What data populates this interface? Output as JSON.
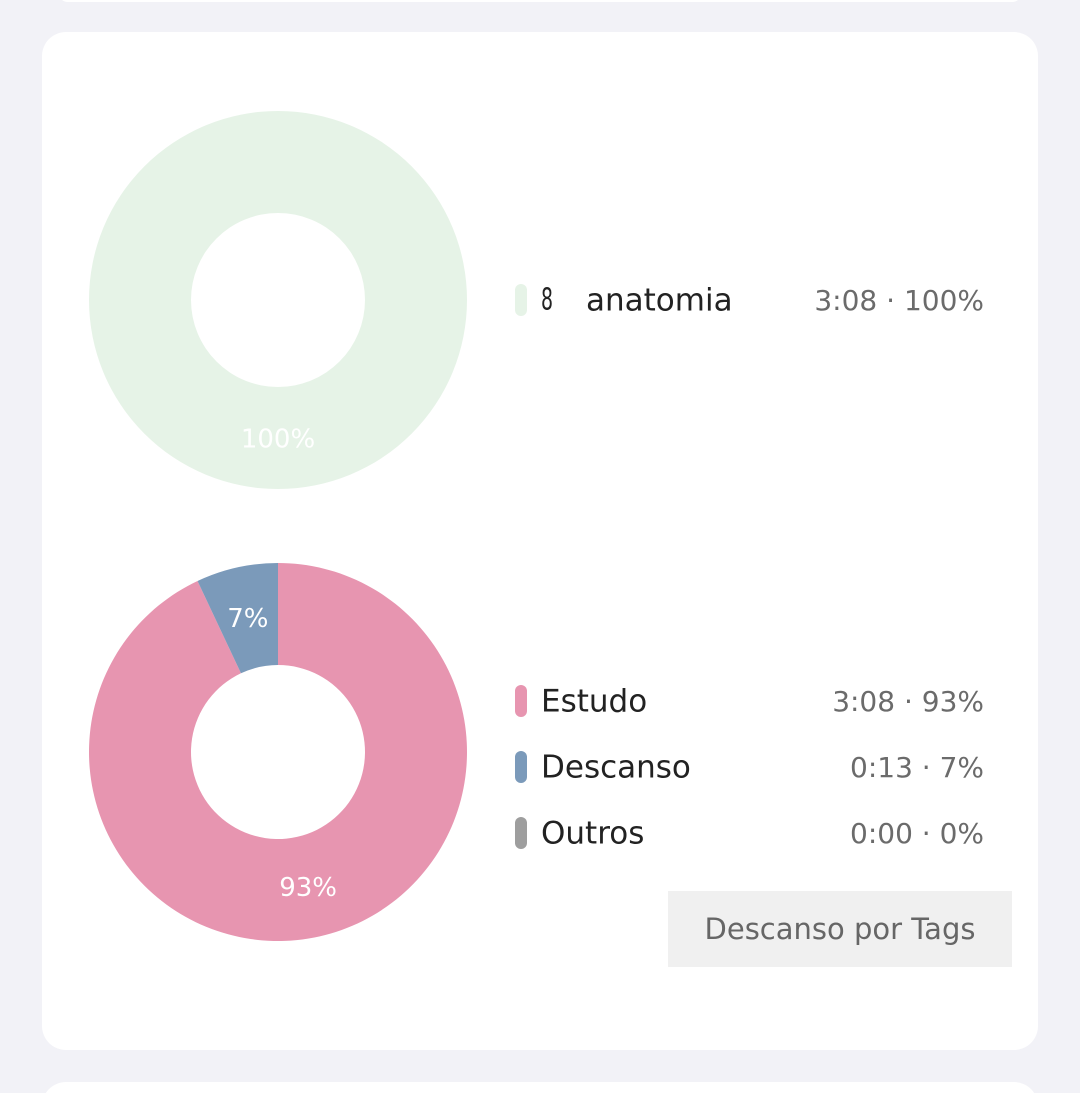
{
  "chart_data": [
    {
      "type": "pie",
      "categories": [
        "anatomia"
      ],
      "icons": [
        "8"
      ],
      "values": [
        100
      ],
      "value_labels": [
        "100%"
      ],
      "details": [
        "3:08 · 100%"
      ],
      "colors": [
        "#e6f3e7"
      ]
    },
    {
      "type": "pie",
      "categories": [
        "Estudo",
        "Descanso",
        "Outros"
      ],
      "values": [
        93,
        7,
        0
      ],
      "value_labels": [
        "93%",
        "7%",
        null
      ],
      "details": [
        "3:08 · 93%",
        "0:13 · 7%",
        "0:00 · 0%"
      ],
      "colors": [
        "#e795b0",
        "#7b9aba",
        "#9e9e9e"
      ]
    }
  ],
  "button": "Descanso por Tags"
}
